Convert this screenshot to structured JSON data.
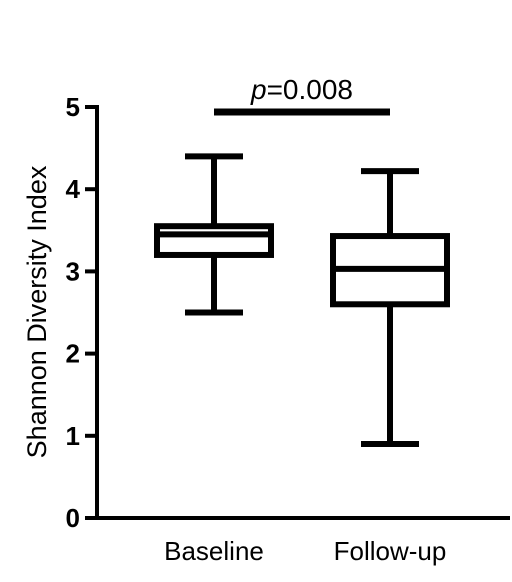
{
  "chart_data": {
    "type": "box",
    "title": "",
    "xlabel": "",
    "ylabel": "Shannon Diversity Index",
    "ylim": [
      0,
      5
    ],
    "yticks": [
      0,
      1,
      2,
      3,
      4,
      5
    ],
    "categories": [
      "Baseline",
      "Follow-up"
    ],
    "boxes": [
      {
        "category": "Baseline",
        "min": 2.5,
        "q1": 3.2,
        "median": 3.45,
        "q3": 3.55,
        "max": 4.4
      },
      {
        "category": "Follow-up",
        "min": 0.9,
        "q1": 2.6,
        "median": 3.03,
        "q3": 3.43,
        "max": 4.22
      }
    ],
    "annotation": {
      "text_italic": "p",
      "text_rest": "=0.008",
      "between": [
        "Baseline",
        "Follow-up"
      ],
      "y": 4.95
    }
  }
}
